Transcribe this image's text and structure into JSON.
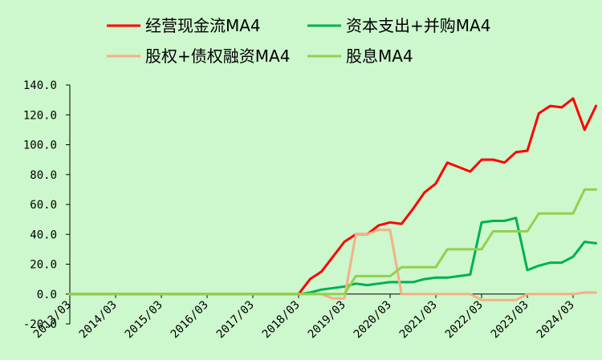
{
  "chart_data": {
    "type": "line",
    "title": "",
    "xlabel": "",
    "ylabel": "",
    "ylim": [
      -20,
      140
    ],
    "yticks": [
      -20,
      0,
      20,
      40,
      60,
      80,
      100,
      120,
      140
    ],
    "ytick_labels": [
      "-20.0",
      "0.0",
      "20.0",
      "40.0",
      "60.0",
      "80.0",
      "100.0",
      "120.0",
      "140.0"
    ],
    "xlim": [
      "2013/03",
      "2024/03"
    ],
    "x_tick_labels": [
      "2013/03",
      "2014/03",
      "2015/03",
      "2016/03",
      "2017/03",
      "2018/03",
      "2019/03",
      "2020/03",
      "2021/03",
      "2022/03",
      "2023/03",
      "2024/03"
    ],
    "legend_position": "top",
    "grid": false,
    "series": [
      {
        "name": "经营现金流MA4",
        "color": "#ff0000",
        "points": [
          [
            "2013/03",
            0
          ],
          [
            "2017/12",
            0
          ],
          [
            "2018/03",
            0
          ],
          [
            "2018/06",
            10
          ],
          [
            "2018/09",
            15
          ],
          [
            "2018/12",
            25
          ],
          [
            "2019/03",
            35
          ],
          [
            "2019/06",
            40
          ],
          [
            "2019/09",
            40
          ],
          [
            "2019/12",
            46
          ],
          [
            "2020/03",
            48
          ],
          [
            "2020/06",
            47
          ],
          [
            "2020/09",
            57
          ],
          [
            "2020/12",
            68
          ],
          [
            "2021/03",
            74
          ],
          [
            "2021/06",
            88
          ],
          [
            "2021/09",
            85
          ],
          [
            "2021/12",
            82
          ],
          [
            "2022/03",
            90
          ],
          [
            "2022/06",
            90
          ],
          [
            "2022/09",
            88
          ],
          [
            "2022/12",
            95
          ],
          [
            "2023/03",
            96
          ],
          [
            "2023/06",
            121
          ],
          [
            "2023/09",
            126
          ],
          [
            "2023/12",
            125
          ],
          [
            "2024/03",
            131
          ],
          [
            "2024/06",
            110
          ],
          [
            "2024/09",
            126
          ]
        ]
      },
      {
        "name": "资本支出+并购MA4",
        "color": "#00b050",
        "points": [
          [
            "2013/03",
            0
          ],
          [
            "2018/03",
            0
          ],
          [
            "2018/06",
            1
          ],
          [
            "2018/09",
            3
          ],
          [
            "2018/12",
            4
          ],
          [
            "2019/03",
            5
          ],
          [
            "2019/06",
            7
          ],
          [
            "2019/09",
            6
          ],
          [
            "2019/12",
            7
          ],
          [
            "2020/03",
            8
          ],
          [
            "2020/06",
            8
          ],
          [
            "2020/09",
            8
          ],
          [
            "2020/12",
            10
          ],
          [
            "2021/03",
            11
          ],
          [
            "2021/06",
            11
          ],
          [
            "2021/09",
            12
          ],
          [
            "2021/12",
            13
          ],
          [
            "2022/03",
            48
          ],
          [
            "2022/06",
            49
          ],
          [
            "2022/09",
            49
          ],
          [
            "2022/12",
            51
          ],
          [
            "2023/03",
            16
          ],
          [
            "2023/06",
            19
          ],
          [
            "2023/09",
            21
          ],
          [
            "2023/12",
            21
          ],
          [
            "2024/03",
            25
          ],
          [
            "2024/06",
            35
          ],
          [
            "2024/09",
            34
          ]
        ]
      },
      {
        "name": "股权+债权融资MA4",
        "color": "#f4b183",
        "points": [
          [
            "2013/03",
            0
          ],
          [
            "2018/09",
            0
          ],
          [
            "2018/12",
            -3
          ],
          [
            "2019/03",
            -3
          ],
          [
            "2019/06",
            40
          ],
          [
            "2019/09",
            40
          ],
          [
            "2019/12",
            43
          ],
          [
            "2020/03",
            43
          ],
          [
            "2020/06",
            0
          ],
          [
            "2020/09",
            0
          ],
          [
            "2020/12",
            0
          ],
          [
            "2021/03",
            0
          ],
          [
            "2021/06",
            0
          ],
          [
            "2021/09",
            0
          ],
          [
            "2021/12",
            0
          ],
          [
            "2022/03",
            -4
          ],
          [
            "2022/06",
            -4
          ],
          [
            "2022/09",
            -4
          ],
          [
            "2022/12",
            -4
          ],
          [
            "2023/03",
            0
          ],
          [
            "2023/06",
            0
          ],
          [
            "2023/09",
            0
          ],
          [
            "2023/12",
            0
          ],
          [
            "2024/03",
            0
          ],
          [
            "2024/06",
            1
          ],
          [
            "2024/09",
            1
          ]
        ]
      },
      {
        "name": "股息MA4",
        "color": "#92d050",
        "points": [
          [
            "2013/03",
            0
          ],
          [
            "2019/03",
            0
          ],
          [
            "2019/06",
            12
          ],
          [
            "2019/09",
            12
          ],
          [
            "2019/12",
            12
          ],
          [
            "2020/03",
            12
          ],
          [
            "2020/06",
            18
          ],
          [
            "2020/09",
            18
          ],
          [
            "2020/12",
            18
          ],
          [
            "2021/03",
            18
          ],
          [
            "2021/06",
            30
          ],
          [
            "2021/09",
            30
          ],
          [
            "2021/12",
            30
          ],
          [
            "2022/03",
            30
          ],
          [
            "2022/06",
            42
          ],
          [
            "2022/09",
            42
          ],
          [
            "2022/12",
            42
          ],
          [
            "2023/03",
            42
          ],
          [
            "2023/06",
            54
          ],
          [
            "2023/09",
            54
          ],
          [
            "2023/12",
            54
          ],
          [
            "2024/03",
            54
          ],
          [
            "2024/06",
            70
          ],
          [
            "2024/09",
            70
          ]
        ]
      }
    ]
  }
}
